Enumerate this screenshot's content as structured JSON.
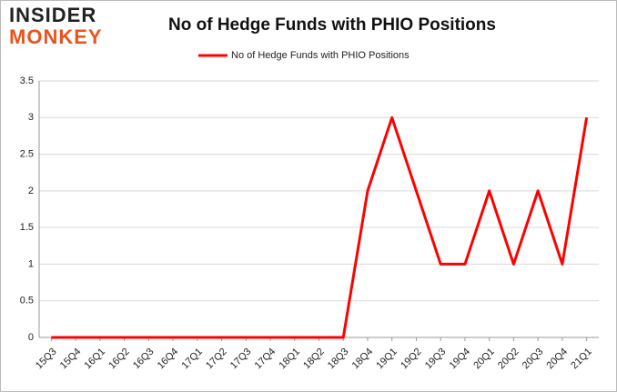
{
  "logo": {
    "line1": "INSIDER",
    "line2": "MONKEY"
  },
  "chart_data": {
    "type": "line",
    "title": "No of Hedge Funds with PHIO Positions",
    "categories": [
      "15Q3",
      "15Q4",
      "16Q1",
      "16Q2",
      "16Q3",
      "16Q4",
      "17Q1",
      "17Q2",
      "17Q3",
      "17Q4",
      "18Q1",
      "18Q2",
      "18Q3",
      "18Q4",
      "19Q1",
      "19Q2",
      "19Q3",
      "19Q4",
      "20Q1",
      "20Q2",
      "20Q3",
      "20Q4",
      "21Q1"
    ],
    "series": [
      {
        "name": "No of Hedge Funds with PHIO Positions",
        "color": "#ff0000",
        "values": [
          0,
          0,
          0,
          0,
          0,
          0,
          0,
          0,
          0,
          0,
          0,
          0,
          0,
          2,
          3,
          2,
          1,
          1,
          2,
          1,
          2,
          1,
          3
        ]
      }
    ],
    "ylim": [
      0,
      3.5
    ],
    "yticks": [
      0,
      0.5,
      1,
      1.5,
      2,
      2.5,
      3,
      3.5
    ],
    "grid": true,
    "legend": "top"
  }
}
